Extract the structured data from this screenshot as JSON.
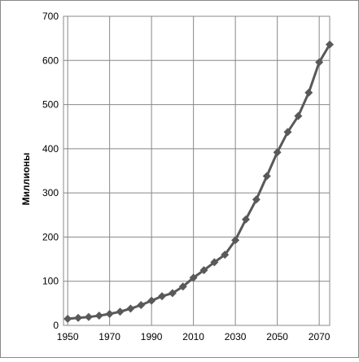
{
  "chart_data": {
    "type": "line",
    "y_label": "Миллионы",
    "x": [
      1950,
      1955,
      1960,
      1965,
      1970,
      1975,
      1980,
      1985,
      1990,
      1995,
      2000,
      2005,
      2010,
      2015,
      2020,
      2025,
      2030,
      2035,
      2040,
      2045,
      2050,
      2055,
      2060,
      2065,
      2070,
      2075
    ],
    "series": [
      {
        "color": "#595959",
        "values": [
          15,
          17,
          19,
          22,
          26,
          31,
          38,
          46,
          56,
          66,
          73,
          88,
          108,
          125,
          143,
          160,
          193,
          240,
          285,
          338,
          392,
          438,
          474,
          527,
          596,
          636
        ]
      }
    ],
    "xlim": [
      1948,
      2075
    ],
    "xticks": [
      1950,
      1970,
      1990,
      2010,
      2030,
      2050,
      2070
    ],
    "ylim": [
      0,
      700
    ],
    "yticks": [
      0,
      100,
      200,
      300,
      400,
      500,
      600,
      700
    ],
    "grid": true
  }
}
